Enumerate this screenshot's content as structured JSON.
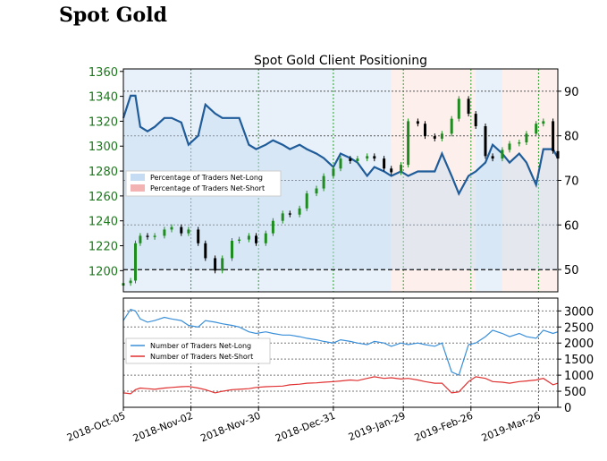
{
  "page_heading": "Spot Gold",
  "chart_data": [
    {
      "type": "line",
      "title": "Spot Gold Client Positioning",
      "left_axis": {
        "label": "",
        "range": [
          1183,
          1362
        ],
        "ticks": [
          "1200",
          "1220",
          "1240",
          "1260",
          "1280",
          "1300",
          "1320",
          "1340",
          "1360"
        ],
        "tick_color": "#1a7a1a"
      },
      "right_axis": {
        "label": "",
        "range": [
          45,
          95
        ],
        "ticks": [
          "50",
          "60",
          "70",
          "80",
          "90"
        ],
        "reference_line": 50
      },
      "legend": {
        "placement": "center-left",
        "entries": [
          {
            "name": "Percentage of Traders Net-Long",
            "color": "#c6dcf2"
          },
          {
            "name": "Percentage of Traders Net-Short",
            "color": "#f4b3b3"
          }
        ]
      },
      "net_long_pct": {
        "color": "#1f5c99",
        "x": [
          "2018-10-05",
          "2018-10-08",
          "2018-10-10",
          "2018-10-12",
          "2018-10-15",
          "2018-10-18",
          "2018-10-22",
          "2018-10-25",
          "2018-10-29",
          "2018-11-01",
          "2018-11-05",
          "2018-11-08",
          "2018-11-12",
          "2018-11-15",
          "2018-11-19",
          "2018-11-22",
          "2018-11-26",
          "2018-11-29",
          "2018-12-03",
          "2018-12-06",
          "2018-12-10",
          "2018-12-13",
          "2018-12-17",
          "2018-12-20",
          "2018-12-24",
          "2018-12-27",
          "2018-12-31",
          "2019-01-03",
          "2019-01-07",
          "2019-01-10",
          "2019-01-14",
          "2019-01-17",
          "2019-01-21",
          "2019-01-24",
          "2019-01-28",
          "2019-01-31",
          "2019-02-04",
          "2019-02-07",
          "2019-02-11",
          "2019-02-14",
          "2019-02-18",
          "2019-02-21",
          "2019-02-25",
          "2019-02-28",
          "2019-03-04",
          "2019-03-07",
          "2019-03-11",
          "2019-03-14",
          "2019-03-18",
          "2019-03-21",
          "2019-03-25",
          "2019-03-28",
          "2019-04-01",
          "2019-04-03"
        ],
        "values": [
          84,
          89,
          89,
          82,
          81,
          82,
          84,
          84,
          83,
          78,
          80,
          87,
          85,
          84,
          84,
          84,
          78,
          77,
          78,
          79,
          78,
          77,
          78,
          77,
          76,
          75,
          73,
          76,
          75,
          74,
          71,
          73,
          72,
          71,
          72,
          71,
          72,
          72,
          72,
          76,
          71,
          67,
          71,
          72,
          74,
          78,
          76,
          74,
          76,
          74,
          69,
          77,
          77,
          75
        ]
      },
      "price": {
        "up_color": "#1e8c1e",
        "down_color": "#000000",
        "x": [
          "2018-10-05",
          "2018-10-08",
          "2018-10-10",
          "2018-10-12",
          "2018-10-15",
          "2018-10-18",
          "2018-10-22",
          "2018-10-25",
          "2018-10-29",
          "2018-11-01",
          "2018-11-05",
          "2018-11-08",
          "2018-11-12",
          "2018-11-15",
          "2018-11-19",
          "2018-11-22",
          "2018-11-26",
          "2018-11-29",
          "2018-12-03",
          "2018-12-06",
          "2018-12-10",
          "2018-12-13",
          "2018-12-17",
          "2018-12-20",
          "2018-12-24",
          "2018-12-27",
          "2018-12-31",
          "2019-01-03",
          "2019-01-07",
          "2019-01-10",
          "2019-01-14",
          "2019-01-17",
          "2019-01-21",
          "2019-01-24",
          "2019-01-28",
          "2019-01-31",
          "2019-02-04",
          "2019-02-07",
          "2019-02-11",
          "2019-02-14",
          "2019-02-18",
          "2019-02-21",
          "2019-02-25",
          "2019-02-28",
          "2019-03-04",
          "2019-03-07",
          "2019-03-11",
          "2019-03-14",
          "2019-03-18",
          "2019-03-21",
          "2019-03-25",
          "2019-03-28",
          "2019-04-01",
          "2019-04-03"
        ],
        "values": [
          1190,
          1192,
          1222,
          1228,
          1227,
          1228,
          1233,
          1235,
          1230,
          1233,
          1222,
          1210,
          1200,
          1210,
          1224,
          1225,
          1228,
          1222,
          1230,
          1240,
          1246,
          1245,
          1250,
          1262,
          1266,
          1276,
          1282,
          1290,
          1288,
          1290,
          1292,
          1290,
          1282,
          1279,
          1285,
          1320,
          1318,
          1308,
          1306,
          1310,
          1322,
          1338,
          1326,
          1316,
          1292,
          1290,
          1297,
          1302,
          1303,
          1310,
          1318,
          1320,
          1296,
          1290
        ]
      },
      "background_regions": [
        {
          "from": "2018-10-05",
          "to": "2019-01-24",
          "side": "net-long",
          "color": "#e8f1fa"
        },
        {
          "from": "2019-01-24",
          "to": "2019-02-28",
          "side": "net-short",
          "color": "#fdf0ec"
        },
        {
          "from": "2019-02-28",
          "to": "2019-03-11",
          "side": "net-long",
          "color": "#e8f1fa"
        },
        {
          "from": "2019-03-11",
          "to": "2019-04-03",
          "side": "net-short",
          "color": "#fdf0ec"
        }
      ]
    },
    {
      "type": "line",
      "right_axis": {
        "range": [
          0,
          3400
        ],
        "ticks": [
          "0",
          "500",
          "1000",
          "1500",
          "2000",
          "2500",
          "3000"
        ]
      },
      "legend": {
        "placement": "center-left"
      },
      "x_axis": {
        "range": [
          "2018-10-05",
          "2019-04-03"
        ],
        "ticks": [
          "2018-Oct-05",
          "2018-Nov-02",
          "2018-Nov-30",
          "2018-Dec-31",
          "2019-Jan-29",
          "2019-Feb-26",
          "2019-Mar-26"
        ]
      },
      "series": [
        {
          "name": "Number of Traders Net-Long",
          "color": "#3a8fd9",
          "x": [
            "2018-10-05",
            "2018-10-08",
            "2018-10-10",
            "2018-10-12",
            "2018-10-15",
            "2018-10-18",
            "2018-10-22",
            "2018-10-25",
            "2018-10-29",
            "2018-11-01",
            "2018-11-05",
            "2018-11-08",
            "2018-11-12",
            "2018-11-15",
            "2018-11-19",
            "2018-11-22",
            "2018-11-26",
            "2018-11-29",
            "2018-12-03",
            "2018-12-06",
            "2018-12-10",
            "2018-12-13",
            "2018-12-17",
            "2018-12-20",
            "2018-12-24",
            "2018-12-27",
            "2018-12-31",
            "2019-01-03",
            "2019-01-07",
            "2019-01-10",
            "2019-01-14",
            "2019-01-17",
            "2019-01-21",
            "2019-01-24",
            "2019-01-28",
            "2019-01-31",
            "2019-02-04",
            "2019-02-07",
            "2019-02-11",
            "2019-02-14",
            "2019-02-18",
            "2019-02-21",
            "2019-02-25",
            "2019-02-28",
            "2019-03-04",
            "2019-03-07",
            "2019-03-11",
            "2019-03-14",
            "2019-03-18",
            "2019-03-21",
            "2019-03-25",
            "2019-03-28",
            "2019-04-01",
            "2019-04-03"
          ],
          "values": [
            2700,
            3050,
            3000,
            2750,
            2650,
            2700,
            2800,
            2750,
            2700,
            2550,
            2500,
            2700,
            2650,
            2600,
            2550,
            2500,
            2350,
            2300,
            2350,
            2300,
            2250,
            2250,
            2200,
            2150,
            2100,
            2050,
            2000,
            2100,
            2050,
            2000,
            1950,
            2050,
            2000,
            1900,
            2000,
            1950,
            2000,
            1950,
            1900,
            2000,
            1100,
            1000,
            1950,
            2000,
            2200,
            2400,
            2300,
            2200,
            2300,
            2200,
            2150,
            2400,
            2300,
            2350
          ]
        },
        {
          "name": "Number of Traders Net-Short",
          "color": "#e03030",
          "x": [
            "2018-10-05",
            "2018-10-08",
            "2018-10-10",
            "2018-10-12",
            "2018-10-15",
            "2018-10-18",
            "2018-10-22",
            "2018-10-25",
            "2018-10-29",
            "2018-11-01",
            "2018-11-05",
            "2018-11-08",
            "2018-11-12",
            "2018-11-15",
            "2018-11-19",
            "2018-11-22",
            "2018-11-26",
            "2018-11-29",
            "2018-12-03",
            "2018-12-06",
            "2018-12-10",
            "2018-12-13",
            "2018-12-17",
            "2018-12-20",
            "2018-12-24",
            "2018-12-27",
            "2018-12-31",
            "2019-01-03",
            "2019-01-07",
            "2019-01-10",
            "2019-01-14",
            "2019-01-17",
            "2019-01-21",
            "2019-01-24",
            "2019-01-28",
            "2019-01-31",
            "2019-02-04",
            "2019-02-07",
            "2019-02-11",
            "2019-02-14",
            "2019-02-18",
            "2019-02-21",
            "2019-02-25",
            "2019-02-28",
            "2019-03-04",
            "2019-03-07",
            "2019-03-11",
            "2019-03-14",
            "2019-03-18",
            "2019-03-21",
            "2019-03-25",
            "2019-03-28",
            "2019-04-01",
            "2019-04-03"
          ],
          "values": [
            450,
            420,
            550,
            600,
            580,
            560,
            600,
            620,
            640,
            650,
            600,
            550,
            450,
            500,
            550,
            560,
            580,
            620,
            640,
            650,
            660,
            700,
            720,
            750,
            760,
            780,
            800,
            820,
            850,
            830,
            900,
            950,
            900,
            920,
            880,
            900,
            850,
            800,
            750,
            750,
            450,
            480,
            800,
            950,
            900,
            800,
            780,
            750,
            800,
            820,
            850,
            900,
            700,
            750
          ]
        }
      ]
    }
  ]
}
